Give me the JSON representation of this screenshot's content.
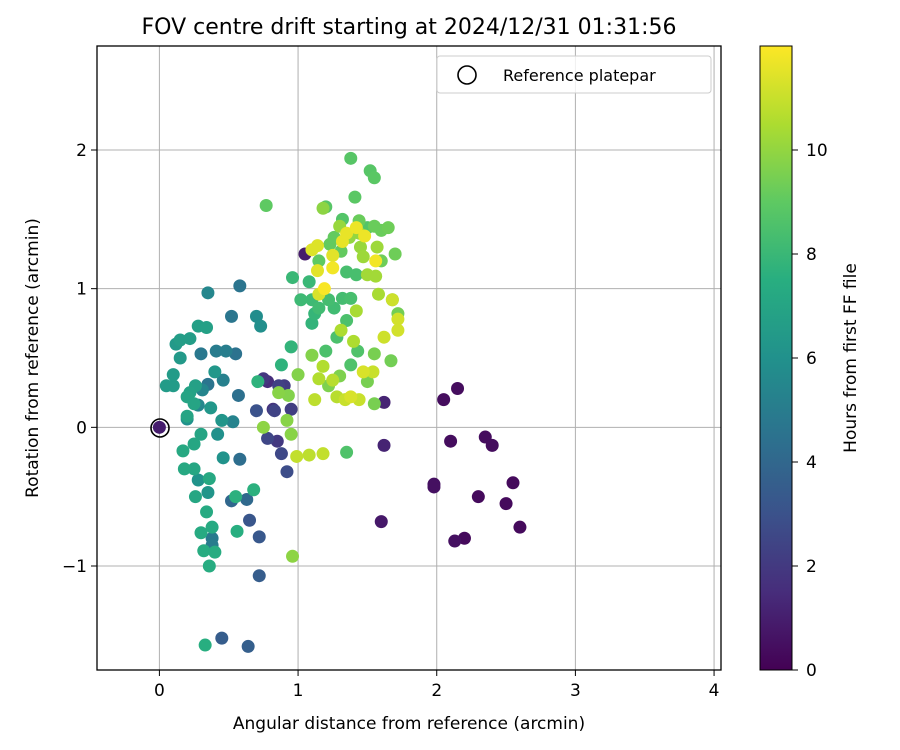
{
  "chart_data": {
    "type": "scatter",
    "title": "FOV centre drift starting at 2024/12/31 01:31:56",
    "xlabel": "Angular distance from reference (arcmin)",
    "ylabel": "Rotation from reference (arcmin)",
    "xlim": [
      -0.45,
      4.05
    ],
    "ylim": [
      -1.75,
      2.75
    ],
    "xticks": [
      0,
      1,
      2,
      3,
      4
    ],
    "yticks": [
      -1,
      0,
      1,
      2
    ],
    "xtick_labels": [
      "0",
      "1",
      "2",
      "3",
      "4"
    ],
    "ytick_labels": [
      "−1",
      "0",
      "1",
      "2"
    ],
    "grid": true,
    "legend": {
      "label": "Reference platepar",
      "placement": "top-right",
      "marker": "open-circle"
    },
    "reference_point": {
      "x": 0,
      "y": 0
    },
    "colorbar": {
      "label": "Hours from first FF file",
      "colormap": "viridis",
      "range": [
        0,
        12
      ],
      "ticks": [
        0,
        2,
        4,
        6,
        8,
        10
      ],
      "tick_labels": [
        "0",
        "2",
        "4",
        "6",
        "8",
        "10"
      ]
    },
    "series": [
      {
        "points": [
          [
            2.3,
            -0.5,
            0.3
          ],
          [
            2.2,
            -0.8,
            0.3
          ],
          [
            2.5,
            -0.55,
            0.3
          ],
          [
            2.6,
            -0.72,
            0.3
          ],
          [
            2.55,
            -0.4,
            0.3
          ],
          [
            2.35,
            -0.07,
            0.4
          ],
          [
            2.4,
            -0.13,
            0.4
          ],
          [
            2.1,
            -0.1,
            0.4
          ],
          [
            2.05,
            0.2,
            0.4
          ],
          [
            2.15,
            0.28,
            0.4
          ],
          [
            1.98,
            -0.43,
            0.5
          ],
          [
            1.98,
            -0.41,
            0.5
          ],
          [
            2.13,
            -0.82,
            0.5
          ],
          [
            1.6,
            -0.68,
            0.8
          ],
          [
            1.62,
            -0.13,
            1.2
          ],
          [
            1.62,
            0.18,
            1.2
          ],
          [
            1.05,
            1.25,
            0.9
          ],
          [
            0.78,
            0.33,
            1.5
          ],
          [
            0.82,
            0.13,
            1.8
          ],
          [
            0.85,
            -0.1,
            2.0
          ],
          [
            0.9,
            0.3,
            2.1
          ],
          [
            0.95,
            0.13,
            2.2
          ],
          [
            0.75,
            0.35,
            1.9
          ],
          [
            0.86,
            0.3,
            2.3
          ],
          [
            0.83,
            0.12,
            2.4
          ],
          [
            0.78,
            -0.08,
            2.5
          ],
          [
            0.88,
            -0.19,
            2.6
          ],
          [
            0.92,
            -0.32,
            2.8
          ],
          [
            0.7,
            0.12,
            3.0
          ],
          [
            0.65,
            -0.67,
            3.2
          ],
          [
            0.72,
            -0.79,
            3.3
          ],
          [
            0.72,
            -1.07,
            3.5
          ],
          [
            0.45,
            -1.52,
            3.5
          ],
          [
            0.64,
            -1.58,
            3.6
          ],
          [
            0.52,
            -0.53,
            4.0
          ],
          [
            0.63,
            -0.52,
            4.1
          ],
          [
            0.58,
            -0.23,
            4.3
          ],
          [
            0.57,
            0.23,
            4.4
          ],
          [
            0.55,
            0.53,
            4.5
          ],
          [
            0.58,
            1.02,
            4.6
          ],
          [
            0.52,
            0.8,
            4.7
          ],
          [
            0.3,
            0.53,
            4.8
          ],
          [
            0.35,
            0.31,
            4.6
          ],
          [
            0.38,
            -0.8,
            4.9
          ],
          [
            0.38,
            -0.85,
            5.0
          ],
          [
            0.41,
            0.55,
            5.0
          ],
          [
            0.48,
            0.55,
            5.1
          ],
          [
            0.46,
            0.34,
            5.2
          ],
          [
            0.53,
            0.04,
            5.3
          ],
          [
            0.31,
            0.27,
            5.4
          ],
          [
            0.28,
            0.16,
            5.5
          ],
          [
            0.35,
            0.97,
            5.5
          ],
          [
            0.7,
            0.8,
            5.8
          ],
          [
            0.73,
            0.73,
            5.9
          ],
          [
            0.2,
            0.06,
            6.0
          ],
          [
            0.42,
            -0.05,
            6.0
          ],
          [
            0.46,
            -0.22,
            6.1
          ],
          [
            0.28,
            -0.38,
            6.1
          ],
          [
            0.35,
            -0.47,
            6.2
          ],
          [
            0.45,
            0.05,
            6.2
          ],
          [
            0.37,
            0.14,
            6.3
          ],
          [
            0.4,
            0.4,
            6.3
          ],
          [
            0.15,
            0.5,
            6.4
          ],
          [
            0.12,
            0.6,
            6.4
          ],
          [
            0.1,
            0.3,
            6.5
          ],
          [
            0.05,
            0.3,
            6.5
          ],
          [
            0.1,
            0.38,
            6.5
          ],
          [
            0.15,
            0.63,
            6.6
          ],
          [
            0.22,
            0.64,
            6.6
          ],
          [
            0.28,
            0.73,
            6.7
          ],
          [
            0.34,
            0.72,
            6.8
          ],
          [
            0.26,
            0.3,
            6.8
          ],
          [
            0.22,
            0.25,
            6.9
          ],
          [
            0.2,
            0.22,
            7.0
          ],
          [
            0.25,
            0.17,
            7.0
          ],
          [
            0.2,
            0.08,
            7.0
          ],
          [
            0.3,
            -0.05,
            7.0
          ],
          [
            0.25,
            -0.12,
            7.1
          ],
          [
            0.25,
            -0.3,
            7.1
          ],
          [
            0.26,
            -0.5,
            7.1
          ],
          [
            0.18,
            -0.3,
            7.2
          ],
          [
            0.17,
            -0.17,
            7.2
          ],
          [
            0.36,
            -0.37,
            7.2
          ],
          [
            0.34,
            -0.61,
            7.3
          ],
          [
            0.3,
            -0.76,
            7.3
          ],
          [
            0.38,
            -0.72,
            7.3
          ],
          [
            0.32,
            -0.89,
            7.4
          ],
          [
            0.4,
            -0.9,
            7.4
          ],
          [
            0.36,
            -1.0,
            7.4
          ],
          [
            0.33,
            -1.57,
            7.5
          ],
          [
            0.56,
            -0.75,
            7.5
          ],
          [
            0.55,
            -0.5,
            7.6
          ],
          [
            0.68,
            -0.45,
            7.6
          ],
          [
            0.71,
            0.33,
            7.7
          ],
          [
            0.88,
            0.45,
            7.7
          ],
          [
            0.95,
            0.58,
            7.8
          ],
          [
            1.1,
            0.75,
            7.8
          ],
          [
            1.12,
            0.82,
            7.9
          ],
          [
            0.96,
            1.08,
            8.0
          ],
          [
            1.08,
            1.05,
            8.0
          ],
          [
            1.02,
            0.92,
            8.1
          ],
          [
            1.1,
            0.92,
            8.1
          ],
          [
            1.15,
            0.86,
            8.2
          ],
          [
            1.26,
            0.86,
            8.2
          ],
          [
            1.22,
            0.92,
            8.3
          ],
          [
            1.32,
            0.93,
            8.3
          ],
          [
            1.38,
            0.93,
            8.4
          ],
          [
            1.35,
            1.12,
            8.4
          ],
          [
            1.42,
            1.1,
            8.4
          ],
          [
            1.35,
            0.77,
            8.5
          ],
          [
            1.28,
            0.65,
            8.5
          ],
          [
            1.2,
            0.55,
            8.5
          ],
          [
            1.43,
            0.55,
            8.6
          ],
          [
            1.38,
            0.45,
            8.6
          ],
          [
            1.35,
            -0.18,
            8.6
          ],
          [
            1.5,
            1.44,
            8.7
          ],
          [
            1.32,
            1.5,
            8.7
          ],
          [
            1.2,
            1.59,
            8.8
          ],
          [
            1.38,
            1.94,
            8.8
          ],
          [
            1.52,
            1.85,
            8.8
          ],
          [
            1.55,
            1.8,
            8.9
          ],
          [
            1.41,
            1.66,
            8.9
          ],
          [
            0.77,
            1.6,
            9.0
          ],
          [
            1.15,
            1.2,
            9.0
          ],
          [
            1.23,
            1.32,
            9.1
          ],
          [
            1.26,
            1.37,
            9.1
          ],
          [
            1.31,
            1.27,
            9.1
          ],
          [
            1.44,
            1.49,
            9.2
          ],
          [
            1.55,
            1.45,
            9.2
          ],
          [
            1.6,
            1.42,
            9.2
          ],
          [
            1.65,
            1.44,
            9.3
          ],
          [
            1.7,
            1.25,
            9.3
          ],
          [
            1.6,
            1.2,
            9.3
          ],
          [
            1.68,
            0.92,
            9.4
          ],
          [
            1.72,
            0.82,
            9.4
          ],
          [
            1.67,
            0.48,
            9.4
          ],
          [
            1.55,
            0.53,
            9.5
          ],
          [
            1.5,
            0.33,
            9.5
          ],
          [
            1.55,
            0.17,
            9.5
          ],
          [
            1.3,
            0.37,
            9.6
          ],
          [
            1.22,
            0.3,
            9.6
          ],
          [
            1.1,
            0.52,
            9.7
          ],
          [
            1.0,
            0.38,
            9.7
          ],
          [
            0.93,
            0.23,
            9.7
          ],
          [
            0.86,
            0.25,
            9.8
          ],
          [
            0.95,
            -0.05,
            9.8
          ],
          [
            0.92,
            0.05,
            9.8
          ],
          [
            0.75,
            0.0,
            9.9
          ],
          [
            0.96,
            -0.93,
            9.9
          ],
          [
            1.18,
            1.58,
            9.9
          ],
          [
            1.44,
            1.4,
            10.0
          ],
          [
            1.37,
            1.37,
            10.0
          ],
          [
            1.3,
            1.45,
            10.1
          ],
          [
            1.45,
            1.3,
            10.1
          ],
          [
            1.47,
            1.23,
            10.2
          ],
          [
            1.57,
            1.3,
            10.2
          ],
          [
            1.5,
            1.1,
            10.3
          ],
          [
            1.56,
            1.09,
            10.3
          ],
          [
            1.58,
            0.96,
            10.4
          ],
          [
            1.42,
            0.84,
            10.4
          ],
          [
            1.4,
            0.62,
            10.5
          ],
          [
            1.31,
            0.7,
            10.5
          ],
          [
            1.18,
            0.44,
            10.6
          ],
          [
            1.15,
            0.35,
            10.6
          ],
          [
            1.25,
            0.34,
            10.7
          ],
          [
            1.28,
            0.22,
            10.7
          ],
          [
            1.12,
            0.2,
            10.8
          ],
          [
            1.08,
            -0.2,
            10.8
          ],
          [
            1.18,
            -0.19,
            10.9
          ],
          [
            0.99,
            -0.21,
            10.9
          ],
          [
            1.34,
            0.2,
            11.0
          ],
          [
            1.44,
            0.2,
            11.0
          ],
          [
            1.54,
            0.4,
            11.0
          ],
          [
            1.62,
            0.65,
            11.1
          ],
          [
            1.68,
            0.92,
            11.1
          ],
          [
            1.72,
            0.78,
            11.2
          ],
          [
            1.72,
            0.7,
            11.2
          ],
          [
            1.47,
            0.4,
            11.3
          ],
          [
            1.38,
            0.22,
            11.3
          ],
          [
            1.15,
            0.96,
            11.3
          ],
          [
            1.14,
            1.31,
            11.4
          ],
          [
            1.1,
            1.28,
            11.4
          ],
          [
            1.14,
            1.13,
            11.5
          ],
          [
            1.25,
            1.24,
            11.5
          ],
          [
            1.32,
            1.34,
            11.6
          ],
          [
            1.35,
            1.4,
            11.6
          ],
          [
            1.42,
            1.44,
            11.7
          ],
          [
            1.48,
            1.38,
            11.7
          ],
          [
            1.56,
            1.2,
            11.8
          ],
          [
            1.25,
            1.15,
            11.8
          ],
          [
            1.19,
            1.0,
            11.9
          ]
        ]
      }
    ]
  }
}
